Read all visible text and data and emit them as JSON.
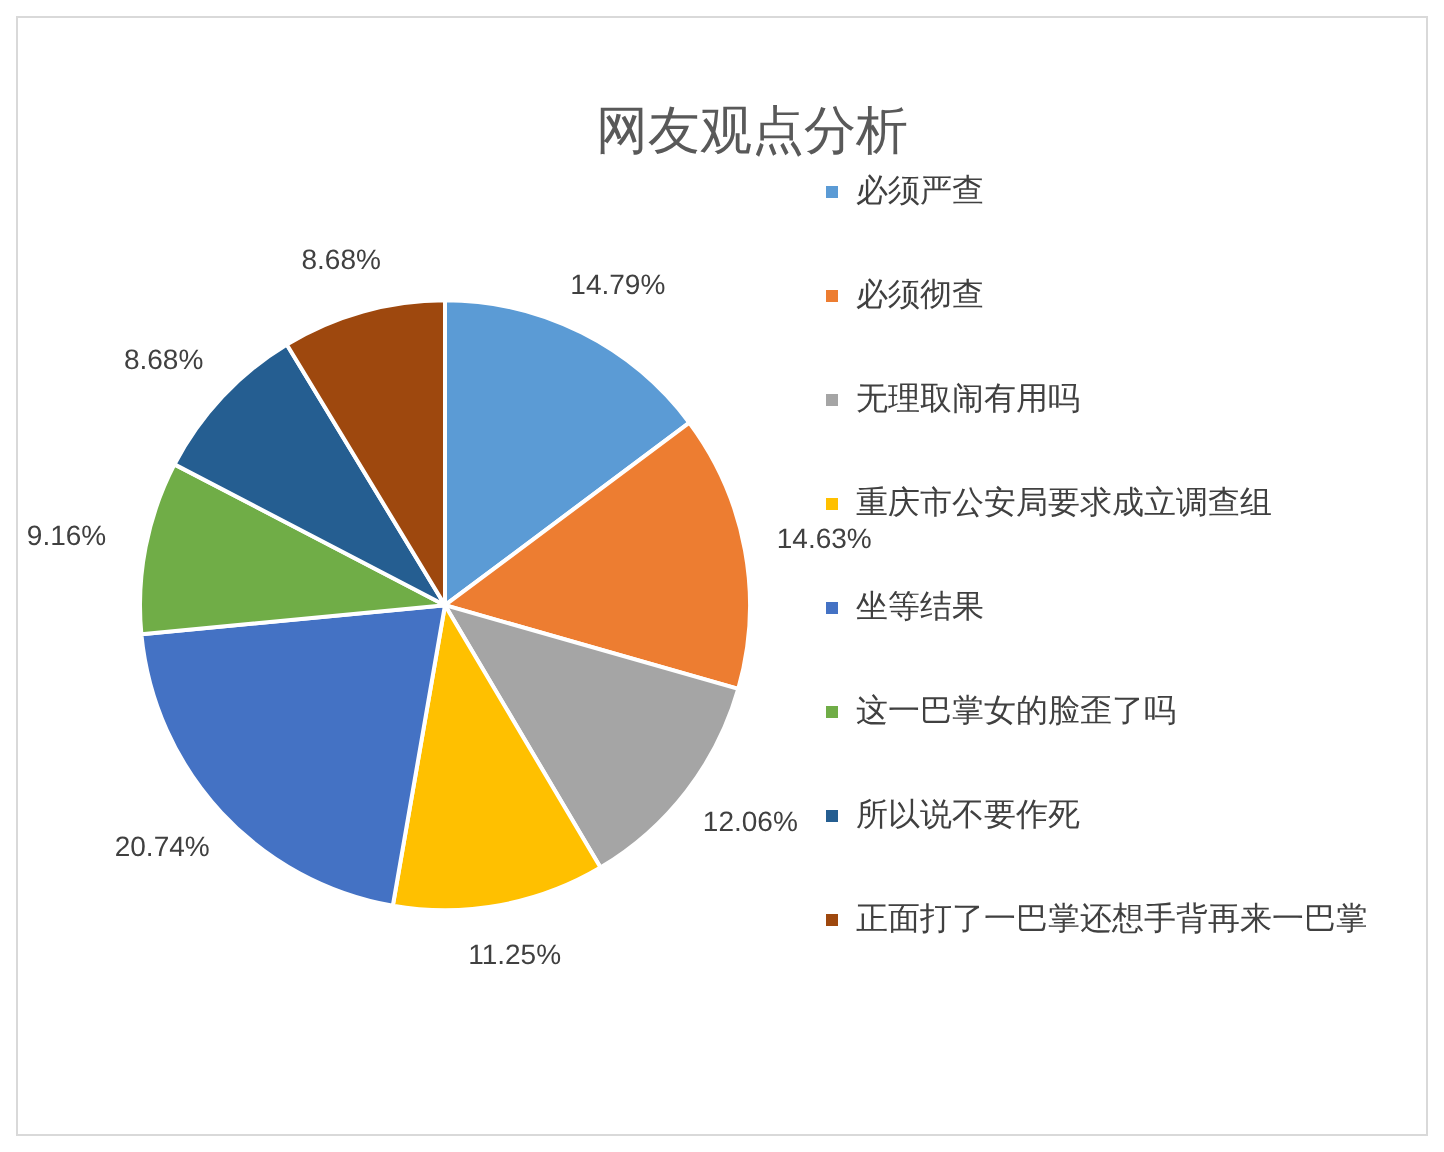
{
  "chart_data": {
    "type": "pie",
    "title": "网友观点分析",
    "categories": [
      "必须严查",
      "必须彻查",
      "无理取闹有用吗",
      "重庆市公安局要求成立调查组",
      "坐等结果",
      "这一巴掌女的脸歪了吗",
      "所以说不要作死",
      "正面打了一巴掌还想手背再来一巴掌"
    ],
    "values": [
      14.79,
      14.63,
      12.06,
      11.25,
      20.74,
      9.16,
      8.68,
      8.68
    ],
    "colors": [
      "#5b9bd5",
      "#ed7d31",
      "#a5a5a5",
      "#ffc000",
      "#4472c4",
      "#70ad47",
      "#255e91",
      "#9e480e"
    ],
    "value_labels": [
      "14.79%",
      "14.63%",
      "12.06%",
      "11.25%",
      "20.74%",
      "9.16%",
      "8.68%",
      "8.68%"
    ],
    "legend": "right"
  }
}
